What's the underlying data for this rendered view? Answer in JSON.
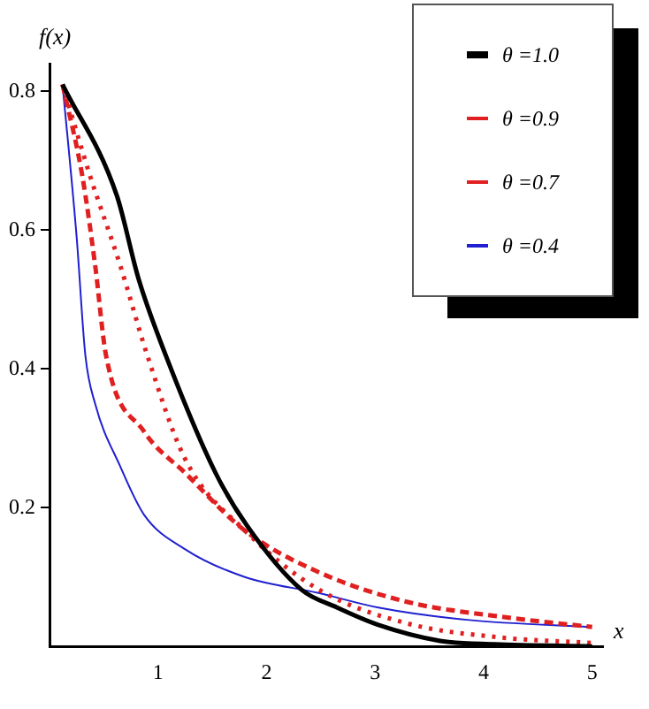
{
  "chart_data": {
    "type": "line",
    "xlabel": "x",
    "ylabel": "f(x)",
    "xlim": [
      0,
      5.1
    ],
    "ylim": [
      0,
      0.84
    ],
    "xticks": [
      1,
      2,
      3,
      4,
      5
    ],
    "yticks": [
      0.2,
      0.4,
      0.6,
      0.8
    ],
    "grid": false,
    "legend": "top right",
    "marker": "none",
    "series": [
      {
        "name": "θ =1.0",
        "color": "#000000",
        "line_style": "solid",
        "x": [
          0.12,
          0.62,
          0.82,
          1.07,
          1.53,
          1.82,
          2.32,
          2.65,
          3.03,
          3.6,
          4.1,
          5
        ],
        "values": [
          0.81,
          0.65,
          0.53,
          0.42,
          0.25,
          0.174,
          0.082,
          0.056,
          0.031,
          0.008,
          0.003,
          0
        ]
      },
      {
        "name": "θ =0.9",
        "color": "#e02020",
        "line_style": "dotted",
        "x": [
          0.12,
          0.37,
          0.65,
          0.9,
          1.25,
          1.8,
          2.48,
          3.3,
          4.15,
          5
        ],
        "values": [
          0.81,
          0.68,
          0.55,
          0.42,
          0.27,
          0.167,
          0.082,
          0.033,
          0.013,
          0.005
        ]
      },
      {
        "name": "θ =0.7",
        "color": "#e02020",
        "line_style": "dashed",
        "x": [
          0.12,
          0.3,
          0.42,
          0.52,
          0.87,
          1.25,
          1.8,
          2.48,
          3.3,
          4.15,
          5
        ],
        "values": [
          0.81,
          0.68,
          0.55,
          0.42,
          0.31,
          0.25,
          0.167,
          0.107,
          0.064,
          0.043,
          0.028
        ]
      },
      {
        "name": "θ =0.4",
        "color": "#2020d0",
        "line_style": "solid",
        "x": [
          0.12,
          0.25,
          0.33,
          0.42,
          0.65,
          0.87,
          1.25,
          1.8,
          2.48,
          3.03,
          3.87,
          4.98
        ],
        "values": [
          0.81,
          0.59,
          0.42,
          0.35,
          0.26,
          0.19,
          0.14,
          0.1,
          0.077,
          0.056,
          0.038,
          0.028
        ]
      }
    ]
  }
}
